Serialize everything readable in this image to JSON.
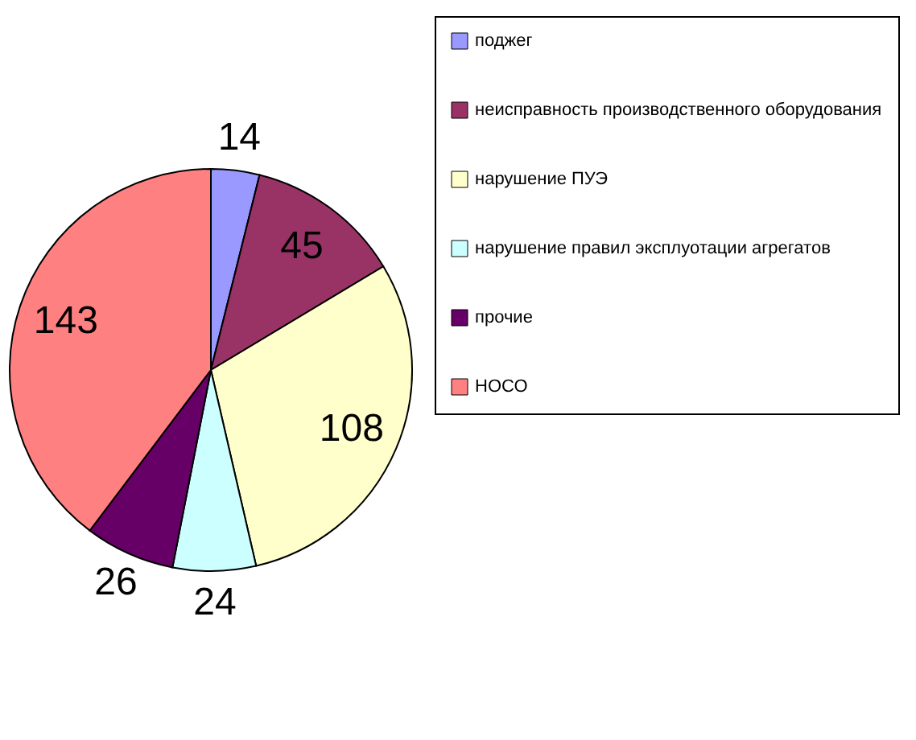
{
  "chart_data": {
    "type": "pie",
    "categories": [
      "поджег",
      "неисправность производственного оборудования",
      "нарушение  ПУЭ",
      "нарушение  правил эксплуотации агрегатов",
      "прочие",
      "НОСО"
    ],
    "values": [
      14,
      45,
      108,
      24,
      26,
      143
    ],
    "colors": [
      "#9999ff",
      "#993366",
      "#ffffcc",
      "#ccffff",
      "#660066",
      "#ff8080"
    ],
    "data_labels": true,
    "legend": "right"
  }
}
